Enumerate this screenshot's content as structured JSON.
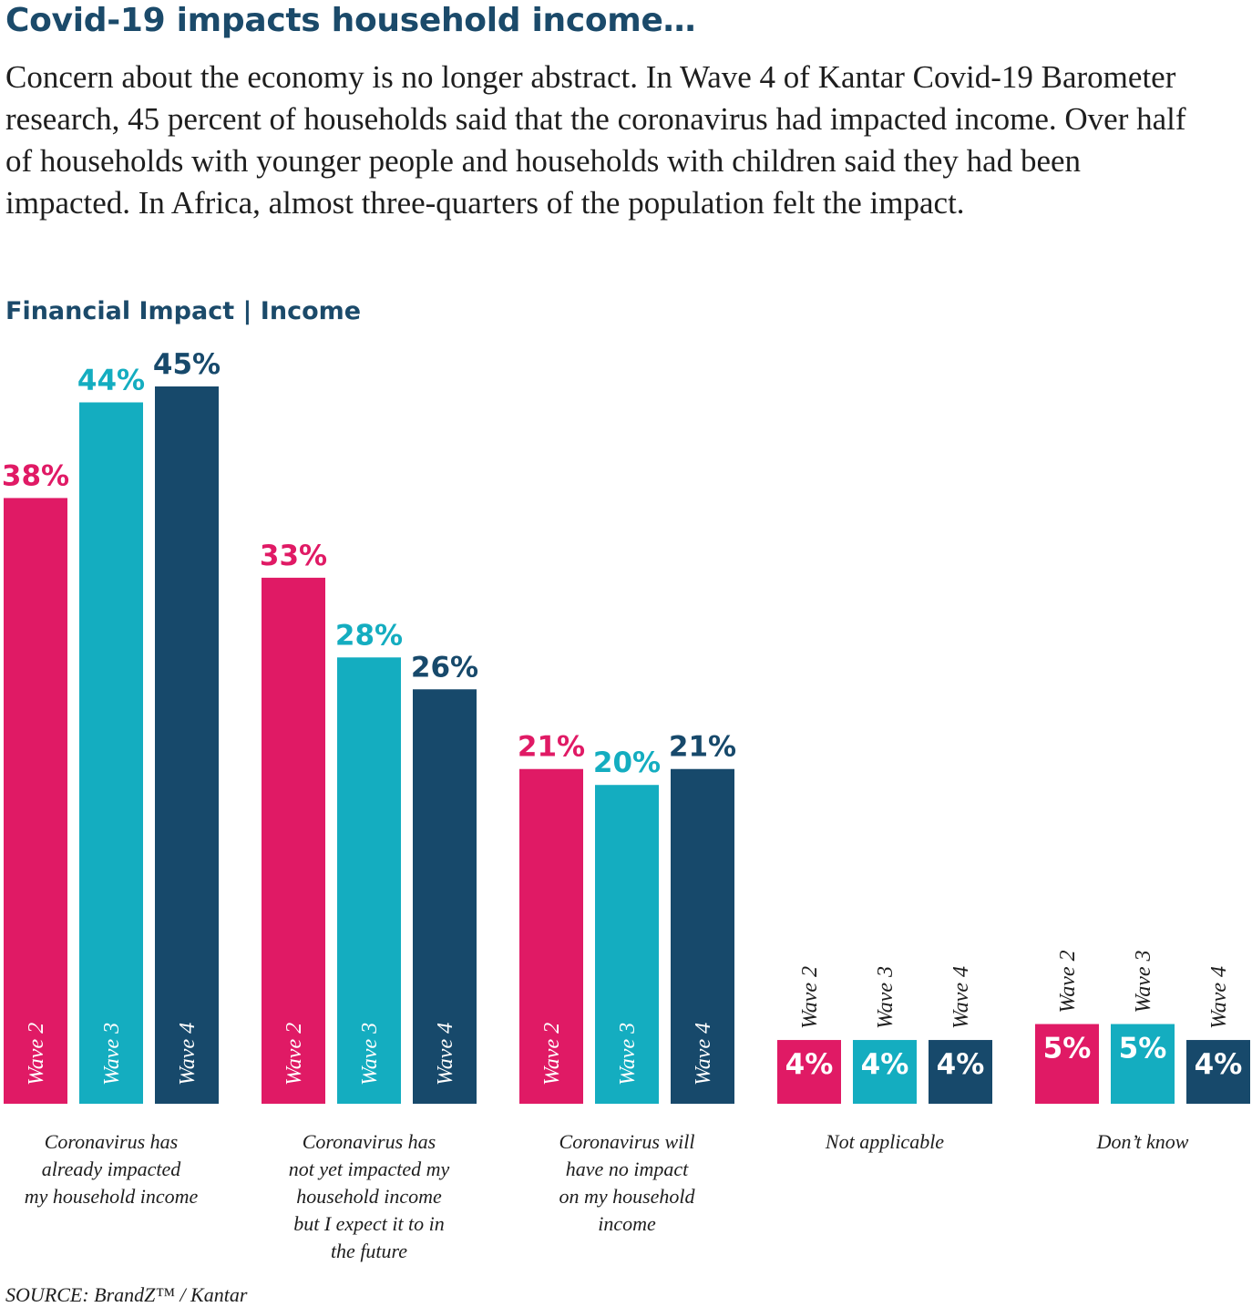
{
  "header": {
    "title": "Covid-19 impacts household income…",
    "intro": "Concern about the economy is no longer abstract. In Wave 4 of Kantar Covid-19 Barometer research, 45 percent of households said that the coronavirus had impacted income. Over half of households with younger people and households with children said they had been impacted. In Africa, almost three-quarters of the population felt the impact.",
    "subtitle": "Financial Impact | Income"
  },
  "chart_data": {
    "type": "bar",
    "title": "Financial Impact | Income",
    "categories": [
      [
        "Coronavirus has",
        "already impacted",
        "my household income"
      ],
      [
        "Coronavirus has",
        "not yet impacted my",
        "household  income",
        "but I expect it  to in",
        "the future"
      ],
      [
        "Coronavirus will",
        "have no impact",
        "on my household",
        "income"
      ],
      [
        "Not applicable"
      ],
      [
        "Don’t know"
      ]
    ],
    "series": [
      {
        "name": "Wave 2",
        "color": "#e01a65",
        "values": [
          38,
          33,
          21,
          4,
          5
        ]
      },
      {
        "name": "Wave 3",
        "color": "#14adc0",
        "values": [
          44,
          28,
          20,
          4,
          5
        ]
      },
      {
        "name": "Wave 4",
        "color": "#17496b",
        "values": [
          45,
          26,
          21,
          4,
          4
        ]
      }
    ],
    "value_suffix": "%",
    "ylim": [
      0,
      45
    ],
    "xlabel": "",
    "ylabel": "",
    "legend": "none"
  },
  "footer": {
    "source": "SOURCE: BrandZ™ / Kantar"
  }
}
